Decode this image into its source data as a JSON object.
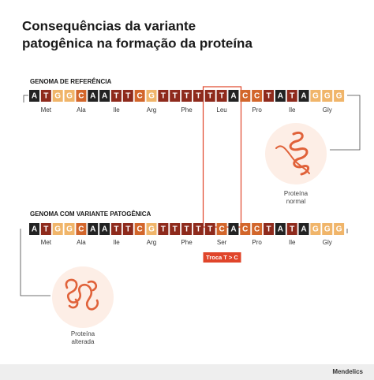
{
  "title": [
    "Consequências da variante",
    "patogênica na formação da proteína"
  ],
  "reference": {
    "label": "GENOMA DE REFERÊNCIA",
    "bases": [
      "A",
      "T",
      "G",
      "G",
      "C",
      "A",
      "A",
      "T",
      "T",
      "C",
      "G",
      "T",
      "T",
      "T",
      "T",
      "T",
      "T",
      "A",
      "C",
      "C",
      "T",
      "A",
      "T",
      "A",
      "G",
      "G",
      "G"
    ],
    "amino_acids": [
      "Met",
      "Ala",
      "Ile",
      "Arg",
      "Phe",
      "Leu",
      "Pro",
      "Ile",
      "Gly"
    ]
  },
  "variant": {
    "label": "GENOMA COM VARIANTE PATOGÊNICA",
    "bases": [
      "A",
      "T",
      "G",
      "G",
      "C",
      "A",
      "A",
      "T",
      "T",
      "C",
      "G",
      "T",
      "T",
      "T",
      "T",
      "T",
      "C",
      "A",
      "C",
      "C",
      "T",
      "A",
      "T",
      "A",
      "G",
      "G",
      "G"
    ],
    "amino_acids": [
      "Met",
      "Ala",
      "Ile",
      "Arg",
      "Phe",
      "Ser",
      "Pro",
      "Ile",
      "Gly"
    ]
  },
  "change_label": "Troca T > C",
  "normal_protein": [
    "Proteína",
    "normal"
  ],
  "altered_protein": [
    "Proteína",
    "alterada"
  ],
  "brand": "Mendelics"
}
